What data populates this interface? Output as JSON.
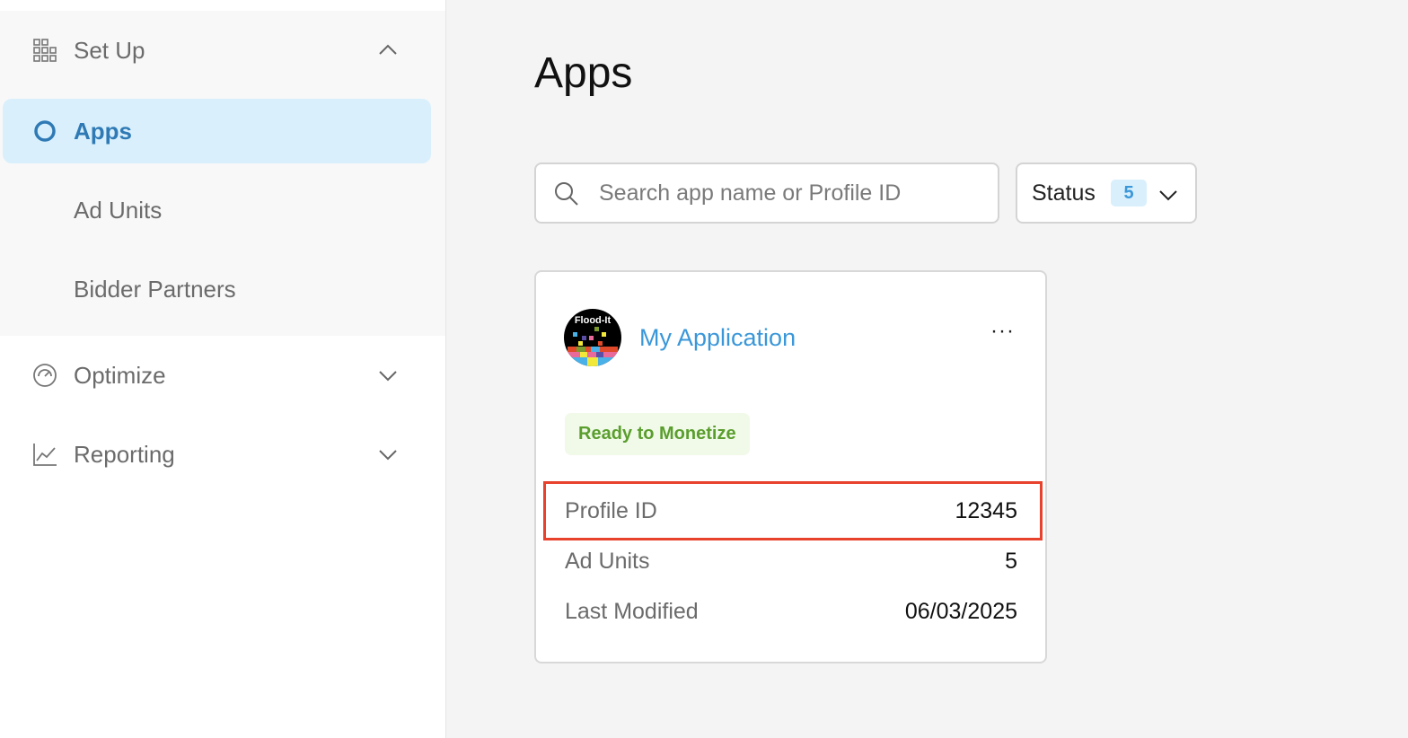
{
  "sidebar": {
    "setup": "Set Up",
    "apps": "Apps",
    "ad_units": "Ad Units",
    "bidder_partners": "Bidder Partners",
    "optimize": "Optimize",
    "reporting": "Reporting"
  },
  "main": {
    "title": "Apps",
    "search_placeholder": "Search app name or Profile ID",
    "status_label": "Status",
    "status_count": "5"
  },
  "card": {
    "app_name": "My Application",
    "logo_text": "Flood-It!",
    "badge": "Ready to Monetize",
    "rows": [
      {
        "label": "Profile ID",
        "value": "12345"
      },
      {
        "label": "Ad Units",
        "value": "5"
      },
      {
        "label": "Last Modified",
        "value": "06/03/2025"
      }
    ]
  },
  "colors": {
    "accent": "#2f7ab5",
    "link": "#3a97d9",
    "active_bg": "#d9f0fc",
    "badge_text": "#5a9e2e",
    "badge_bg": "#f1fae9",
    "highlight": "#e8412c"
  }
}
